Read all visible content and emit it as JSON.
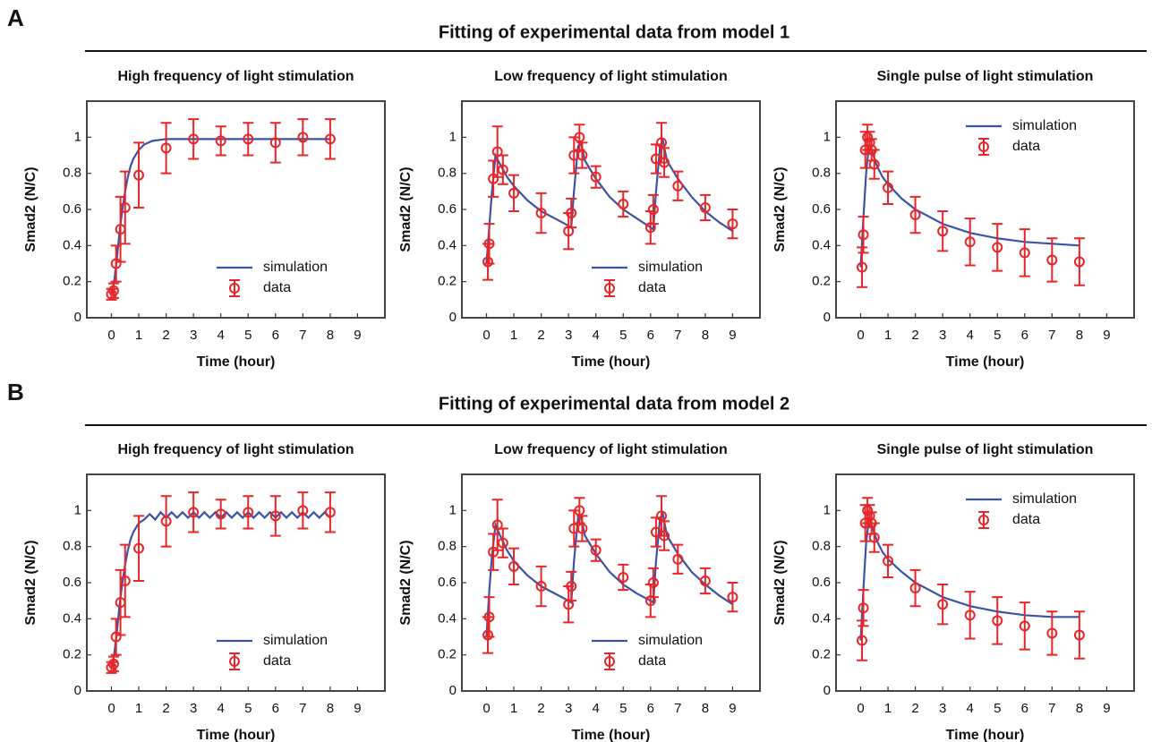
{
  "panels": [
    {
      "label": "A",
      "title": "Fitting of experimental data from model 1"
    },
    {
      "label": "B",
      "title": "Fitting of experimental data from model 2"
    }
  ],
  "chart_data": [
    {
      "type": "line",
      "title": "High frequency of light stimulation",
      "xlabel": "Time (hour)",
      "ylabel": "Smad2 (N/C)",
      "xlim": [
        -0.9,
        10
      ],
      "ylim": [
        0,
        1.2
      ],
      "xticks": [
        0,
        1,
        2,
        3,
        4,
        5,
        6,
        7,
        8,
        9
      ],
      "yticks": [
        0,
        0.2,
        0.4,
        0.6,
        0.8,
        1
      ],
      "legend": "lower right",
      "series": [
        {
          "name": "simulation",
          "color": "#3a53a4",
          "x": [
            0,
            0.1,
            0.2,
            0.3,
            0.4,
            0.5,
            0.6,
            0.7,
            0.8,
            1,
            1.2,
            1.5,
            2,
            3,
            4,
            5,
            6,
            7,
            8
          ],
          "values": [
            0.13,
            0.2,
            0.33,
            0.48,
            0.6,
            0.7,
            0.78,
            0.84,
            0.88,
            0.93,
            0.96,
            0.98,
            0.99,
            0.99,
            0.99,
            0.99,
            0.99,
            0.99,
            0.99
          ]
        },
        {
          "name": "data",
          "color": "#e8262a",
          "x": [
            0,
            0.08,
            0.17,
            0.33,
            0.5,
            1,
            2,
            3,
            4,
            5,
            6,
            7,
            8
          ],
          "values": [
            0.13,
            0.15,
            0.3,
            0.49,
            0.61,
            0.79,
            0.94,
            0.99,
            0.98,
            0.99,
            0.97,
            1,
            0.99
          ],
          "errors": [
            0.03,
            0.04,
            0.1,
            0.18,
            0.2,
            0.18,
            0.14,
            0.11,
            0.08,
            0.09,
            0.11,
            0.1,
            0.11
          ]
        }
      ]
    },
    {
      "type": "line",
      "title": "Low frequency of light stimulation",
      "xlabel": "Time (hour)",
      "ylabel": "Smad2 (N/C)",
      "xlim": [
        -0.9,
        10
      ],
      "ylim": [
        0,
        1.2
      ],
      "xticks": [
        0,
        1,
        2,
        3,
        4,
        5,
        6,
        7,
        8,
        9
      ],
      "yticks": [
        0,
        0.2,
        0.4,
        0.6,
        0.8,
        1
      ],
      "legend": "lower right",
      "series": [
        {
          "name": "simulation",
          "color": "#3a53a4",
          "x": [
            0,
            0.1,
            0.2,
            0.33,
            0.5,
            0.75,
            1,
            1.5,
            2,
            2.5,
            3,
            3.1,
            3.2,
            3.35,
            3.45,
            3.6,
            4,
            4.5,
            5,
            5.5,
            6,
            6.1,
            6.2,
            6.35,
            6.45,
            6.6,
            7,
            7.5,
            8,
            8.5,
            9
          ],
          "values": [
            0.3,
            0.5,
            0.7,
            0.9,
            0.85,
            0.78,
            0.73,
            0.65,
            0.59,
            0.55,
            0.51,
            0.5,
            0.7,
            0.95,
            0.97,
            0.87,
            0.77,
            0.67,
            0.6,
            0.55,
            0.5,
            0.49,
            0.7,
            0.95,
            0.98,
            0.87,
            0.77,
            0.67,
            0.59,
            0.53,
            0.48
          ]
        },
        {
          "name": "data",
          "color": "#e8262a",
          "x": [
            0.05,
            0.1,
            0.25,
            0.4,
            0.6,
            1,
            2,
            3,
            3.1,
            3.2,
            3.4,
            3.5,
            4,
            5,
            6,
            6.1,
            6.2,
            6.4,
            6.5,
            7,
            8,
            9
          ],
          "values": [
            0.31,
            0.41,
            0.77,
            0.92,
            0.82,
            0.69,
            0.58,
            0.48,
            0.58,
            0.9,
            1,
            0.9,
            0.78,
            0.63,
            0.5,
            0.6,
            0.88,
            0.97,
            0.86,
            0.73,
            0.61,
            0.52
          ],
          "errors": [
            0.1,
            0.11,
            0.1,
            0.14,
            0.08,
            0.1,
            0.11,
            0.1,
            0.08,
            0.1,
            0.07,
            0.07,
            0.06,
            0.07,
            0.09,
            0.08,
            0.08,
            0.11,
            0.08,
            0.08,
            0.07,
            0.08
          ]
        }
      ]
    },
    {
      "type": "line",
      "title": "Single pulse of light stimulation",
      "xlabel": "Time (hour)",
      "ylabel": "Smad2 (N/C)",
      "xlim": [
        -0.9,
        10
      ],
      "ylim": [
        0,
        1.2
      ],
      "xticks": [
        0,
        1,
        2,
        3,
        4,
        5,
        6,
        7,
        8,
        9
      ],
      "yticks": [
        0,
        0.2,
        0.4,
        0.6,
        0.8,
        1
      ],
      "legend": "upper right",
      "series": [
        {
          "name": "simulation",
          "color": "#3a53a4",
          "x": [
            0,
            0.1,
            0.2,
            0.3,
            0.4,
            0.6,
            0.8,
            1,
            1.5,
            2,
            3,
            4,
            5,
            6,
            7,
            8
          ],
          "values": [
            0.28,
            0.55,
            0.8,
            0.95,
            0.93,
            0.84,
            0.78,
            0.74,
            0.66,
            0.6,
            0.52,
            0.47,
            0.44,
            0.42,
            0.41,
            0.4
          ]
        },
        {
          "name": "data",
          "color": "#e8262a",
          "x": [
            0.05,
            0.1,
            0.17,
            0.25,
            0.33,
            0.4,
            0.5,
            1,
            2,
            3,
            4,
            5,
            6,
            7,
            8
          ],
          "values": [
            0.28,
            0.46,
            0.93,
            1,
            0.97,
            0.93,
            0.85,
            0.72,
            0.57,
            0.48,
            0.42,
            0.39,
            0.36,
            0.32,
            0.31
          ],
          "errors": [
            0.11,
            0.1,
            0.1,
            0.07,
            0.06,
            0.06,
            0.08,
            0.09,
            0.1,
            0.11,
            0.13,
            0.13,
            0.13,
            0.12,
            0.13
          ]
        }
      ]
    },
    {
      "type": "line",
      "title": "High frequency of light stimulation",
      "xlabel": "Time (hour)",
      "ylabel": "Smad2 (N/C)",
      "xlim": [
        -0.9,
        10
      ],
      "ylim": [
        0,
        1.2
      ],
      "xticks": [
        0,
        1,
        2,
        3,
        4,
        5,
        6,
        7,
        8,
        9
      ],
      "yticks": [
        0,
        0.2,
        0.4,
        0.6,
        0.8,
        1
      ],
      "legend": "lower right",
      "series": [
        {
          "name": "simulation",
          "color": "#3a53a4",
          "x": [
            0,
            0.1,
            0.2,
            0.3,
            0.4,
            0.5,
            0.6,
            0.7,
            0.8,
            1,
            1.2,
            1.4,
            1.6,
            1.8,
            2,
            2.2,
            2.4,
            2.6,
            2.8,
            3,
            3.2,
            3.4,
            3.6,
            3.8,
            4,
            4.2,
            4.4,
            4.6,
            4.8,
            5,
            5.2,
            5.4,
            5.6,
            5.8,
            6,
            6.2,
            6.4,
            6.6,
            6.8,
            7,
            7.2,
            7.4,
            7.6,
            7.8,
            8
          ],
          "values": [
            0.13,
            0.2,
            0.33,
            0.48,
            0.6,
            0.7,
            0.78,
            0.84,
            0.88,
            0.93,
            0.95,
            0.98,
            0.95,
            0.99,
            0.96,
            0.99,
            0.96,
            0.99,
            0.96,
            0.99,
            0.96,
            0.99,
            0.96,
            0.99,
            0.96,
            0.99,
            0.96,
            0.99,
            0.96,
            0.99,
            0.96,
            0.99,
            0.96,
            0.99,
            0.96,
            0.99,
            0.96,
            0.99,
            0.96,
            0.99,
            0.96,
            0.99,
            0.96,
            0.99,
            0.96
          ]
        },
        {
          "name": "data",
          "color": "#e8262a",
          "x": [
            0,
            0.08,
            0.17,
            0.33,
            0.5,
            1,
            2,
            3,
            4,
            5,
            6,
            7,
            8
          ],
          "values": [
            0.13,
            0.15,
            0.3,
            0.49,
            0.61,
            0.79,
            0.94,
            0.99,
            0.98,
            0.99,
            0.97,
            1,
            0.99
          ],
          "errors": [
            0.03,
            0.04,
            0.1,
            0.18,
            0.2,
            0.18,
            0.14,
            0.11,
            0.08,
            0.09,
            0.11,
            0.1,
            0.11
          ]
        }
      ]
    },
    {
      "type": "line",
      "title": "Low frequency of light stimulation",
      "xlabel": "Time (hour)",
      "ylabel": "Smad2 (N/C)",
      "xlim": [
        -0.9,
        10
      ],
      "ylim": [
        0,
        1.2
      ],
      "xticks": [
        0,
        1,
        2,
        3,
        4,
        5,
        6,
        7,
        8,
        9
      ],
      "yticks": [
        0,
        0.2,
        0.4,
        0.6,
        0.8,
        1
      ],
      "legend": "lower right",
      "series": [
        {
          "name": "simulation",
          "color": "#3a53a4",
          "x": [
            0,
            0.1,
            0.2,
            0.33,
            0.5,
            0.75,
            1,
            1.5,
            2,
            2.5,
            3,
            3.1,
            3.2,
            3.35,
            3.45,
            3.6,
            4,
            4.5,
            5,
            5.5,
            6,
            6.1,
            6.2,
            6.35,
            6.45,
            6.6,
            7,
            7.5,
            8,
            8.5,
            9
          ],
          "values": [
            0.3,
            0.55,
            0.75,
            0.92,
            0.86,
            0.78,
            0.72,
            0.64,
            0.58,
            0.54,
            0.5,
            0.49,
            0.72,
            0.96,
            0.97,
            0.86,
            0.76,
            0.66,
            0.59,
            0.54,
            0.5,
            0.49,
            0.72,
            0.96,
            0.98,
            0.86,
            0.76,
            0.66,
            0.59,
            0.53,
            0.48
          ]
        },
        {
          "name": "data",
          "color": "#e8262a",
          "x": [
            0.05,
            0.1,
            0.25,
            0.4,
            0.6,
            1,
            2,
            3,
            3.1,
            3.2,
            3.4,
            3.5,
            4,
            5,
            6,
            6.1,
            6.2,
            6.4,
            6.5,
            7,
            8,
            9
          ],
          "values": [
            0.31,
            0.41,
            0.77,
            0.92,
            0.82,
            0.69,
            0.58,
            0.48,
            0.58,
            0.9,
            1,
            0.9,
            0.78,
            0.63,
            0.5,
            0.6,
            0.88,
            0.97,
            0.86,
            0.73,
            0.61,
            0.52
          ],
          "errors": [
            0.1,
            0.11,
            0.1,
            0.14,
            0.08,
            0.1,
            0.11,
            0.1,
            0.08,
            0.1,
            0.07,
            0.07,
            0.06,
            0.07,
            0.09,
            0.08,
            0.08,
            0.11,
            0.08,
            0.08,
            0.07,
            0.08
          ]
        }
      ]
    },
    {
      "type": "line",
      "title": "Single pulse of light stimulation",
      "xlabel": "Time (hour)",
      "ylabel": "Smad2 (N/C)",
      "xlim": [
        -0.9,
        10
      ],
      "ylim": [
        0,
        1.2
      ],
      "xticks": [
        0,
        1,
        2,
        3,
        4,
        5,
        6,
        7,
        8,
        9
      ],
      "yticks": [
        0,
        0.2,
        0.4,
        0.6,
        0.8,
        1
      ],
      "legend": "upper right",
      "series": [
        {
          "name": "simulation",
          "color": "#3a53a4",
          "x": [
            0,
            0.1,
            0.2,
            0.3,
            0.4,
            0.6,
            0.8,
            1,
            1.5,
            2,
            3,
            4,
            5,
            6,
            7,
            8
          ],
          "values": [
            0.28,
            0.56,
            0.82,
            0.95,
            0.92,
            0.83,
            0.77,
            0.73,
            0.66,
            0.6,
            0.52,
            0.47,
            0.44,
            0.42,
            0.41,
            0.41
          ]
        },
        {
          "name": "data",
          "color": "#e8262a",
          "x": [
            0.05,
            0.1,
            0.17,
            0.25,
            0.33,
            0.4,
            0.5,
            1,
            2,
            3,
            4,
            5,
            6,
            7,
            8
          ],
          "values": [
            0.28,
            0.46,
            0.93,
            1,
            0.97,
            0.93,
            0.85,
            0.72,
            0.57,
            0.48,
            0.42,
            0.39,
            0.36,
            0.32,
            0.31
          ],
          "errors": [
            0.11,
            0.1,
            0.1,
            0.07,
            0.06,
            0.06,
            0.08,
            0.09,
            0.1,
            0.11,
            0.13,
            0.13,
            0.13,
            0.12,
            0.13
          ]
        }
      ]
    }
  ]
}
